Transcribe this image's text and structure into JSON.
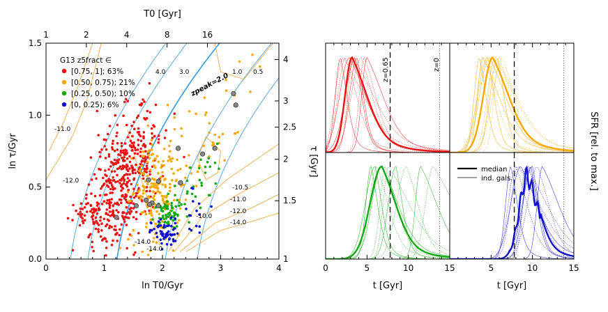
{
  "chart_data": [
    {
      "type": "scatter",
      "title": "",
      "xlabel": "ln T0/Gyr",
      "ylabel": "ln τ/Gyr",
      "xlim": [
        0,
        4
      ],
      "ylim": [
        0,
        1.5
      ],
      "x_ticks": [
        0,
        1,
        2,
        3,
        4
      ],
      "y_ticks": [
        0.0,
        0.5,
        1.0,
        1.5
      ],
      "top_axis": {
        "label": "T0 [Gyr]",
        "ticks": [
          "1",
          "2",
          "4",
          "8",
          "16"
        ],
        "values": [
          1,
          2,
          4,
          8,
          16
        ]
      },
      "right_axis": {
        "label": "τ [Gyr]",
        "ticks": [
          "1",
          "1.5",
          "2",
          "2.5",
          "3",
          "4"
        ],
        "values": [
          1,
          1.5,
          2,
          2.5,
          3,
          4
        ]
      },
      "legend": {
        "title": "G13 z5fract ∈",
        "placement": "top-left",
        "entries": [
          {
            "label": "[0.75, 1]; 63%",
            "color": "#ee1111"
          },
          {
            "label": "[0.50, 0.75); 21%",
            "color": "#f5a800"
          },
          {
            "label": "[0.25, 0.50); 10%",
            "color": "#11aa11"
          },
          {
            "label": "[0, 0.25);  6%",
            "color": "#1111cc"
          }
        ]
      },
      "zpeak_contours": {
        "color": "#3399dd",
        "labels": [
          "4.0",
          "3.0",
          "2.0",
          "1.0",
          "0.5"
        ],
        "main_label": "zpeak=2.0"
      },
      "density_contours": {
        "color": "#f0a030",
        "labels": [
          "-11.0",
          "-12.0",
          "-14.0",
          "-10.5",
          "-11.0",
          "-12.0",
          "-14.0",
          "-14.0",
          "-10.0"
        ]
      },
      "series": [
        {
          "name": "[0.75, 1]",
          "color": "#ee1111",
          "clusters": [
            {
              "cx": 1.35,
              "cy": 0.55,
              "sx": 0.35,
              "sy": 0.2,
              "n": 420,
              "rot": 0.55
            },
            {
              "cx": 0.85,
              "cy": 0.32,
              "sx": 0.25,
              "sy": 0.05,
              "n": 70,
              "rot": 0.0
            }
          ]
        },
        {
          "name": "[0.50, 0.75)",
          "color": "#f5a800",
          "clusters": [
            {
              "cx": 1.9,
              "cy": 0.45,
              "sx": 0.25,
              "sy": 0.2,
              "n": 200,
              "rot": 0.6
            },
            {
              "cx": 2.8,
              "cy": 0.95,
              "sx": 0.4,
              "sy": 0.18,
              "n": 40,
              "rot": 0.4
            }
          ]
        },
        {
          "name": "[0.25, 0.50)",
          "color": "#11aa11",
          "clusters": [
            {
              "cx": 2.05,
              "cy": 0.3,
              "sx": 0.12,
              "sy": 0.06,
              "n": 60,
              "rot": 0.2
            },
            {
              "cx": 2.6,
              "cy": 0.5,
              "sx": 0.2,
              "sy": 0.1,
              "n": 30,
              "rot": 0.5
            }
          ]
        },
        {
          "name": "[0, 0.25)",
          "color": "#1111cc",
          "clusters": [
            {
              "cx": 2.05,
              "cy": 0.18,
              "sx": 0.12,
              "sy": 0.05,
              "n": 60,
              "rot": 0.0
            },
            {
              "cx": 2.6,
              "cy": 0.28,
              "sx": 0.1,
              "sy": 0.12,
              "n": 15,
              "rot": 0.8
            }
          ]
        }
      ],
      "highlighted_points": [
        [
          1.55,
          0.37
        ],
        [
          1.76,
          0.55
        ],
        [
          1.72,
          0.41
        ],
        [
          1.82,
          0.39
        ],
        [
          1.93,
          0.37
        ],
        [
          1.78,
          0.38
        ],
        [
          2.27,
          0.77
        ],
        [
          2.69,
          0.73
        ],
        [
          3.26,
          1.07
        ],
        [
          3.22,
          1.15
        ],
        [
          2.9,
          0.77
        ],
        [
          1.21,
          0.29
        ],
        [
          1.93,
          0.54
        ],
        [
          2.31,
          0.53
        ]
      ]
    },
    {
      "type": "line",
      "title": "",
      "ylabel": "SFR [rel. to max.]",
      "xlabel": "t [Gyr]",
      "xlim": [
        0,
        15
      ],
      "x_ticks": [
        0,
        5,
        10,
        15
      ],
      "ylim": [
        0,
        1.15
      ],
      "vertical_lines": [
        {
          "x": 7.8,
          "label": "z=0.65",
          "style": "dashed"
        },
        {
          "x": 13.8,
          "label": "z=0",
          "style": "dotted"
        }
      ],
      "legend": {
        "placement": "top-right",
        "entries": [
          "median",
          "ind. gals."
        ]
      },
      "panels": [
        {
          "color": "#ee1111",
          "median": {
            "peak_t": 3.2,
            "rise": 1.2,
            "fall": 2.8
          },
          "individual_peaks": [
            1.8,
            2.4,
            2.9,
            3.3,
            3.8,
            4.3,
            5.0,
            2.1,
            3.6,
            4.7
          ]
        },
        {
          "color": "#f5a800",
          "median": {
            "peak_t": 5.2,
            "rise": 1.6,
            "fall": 3.0
          },
          "individual_peaks": [
            3.6,
            4.2,
            4.8,
            5.3,
            5.8,
            6.4,
            4.0,
            5.5,
            4.6,
            6.0
          ]
        },
        {
          "color": "#11aa11",
          "median": {
            "peak_t": 6.8,
            "rise": 2.0,
            "fall": 2.6
          },
          "individual_peaks": [
            5.5,
            6.2,
            6.8,
            7.6,
            8.5,
            9.8,
            11.5,
            13.0,
            6.0,
            7.2
          ]
        },
        {
          "color": "#1111cc",
          "median": {
            "peak_t": 9.4,
            "rise": 1.4,
            "fall": 2.0
          },
          "individual_peaks": [
            7.4,
            8.0,
            8.6,
            9.2,
            9.8,
            10.6,
            11.2,
            8.3,
            10.0,
            9.5
          ]
        }
      ]
    }
  ]
}
